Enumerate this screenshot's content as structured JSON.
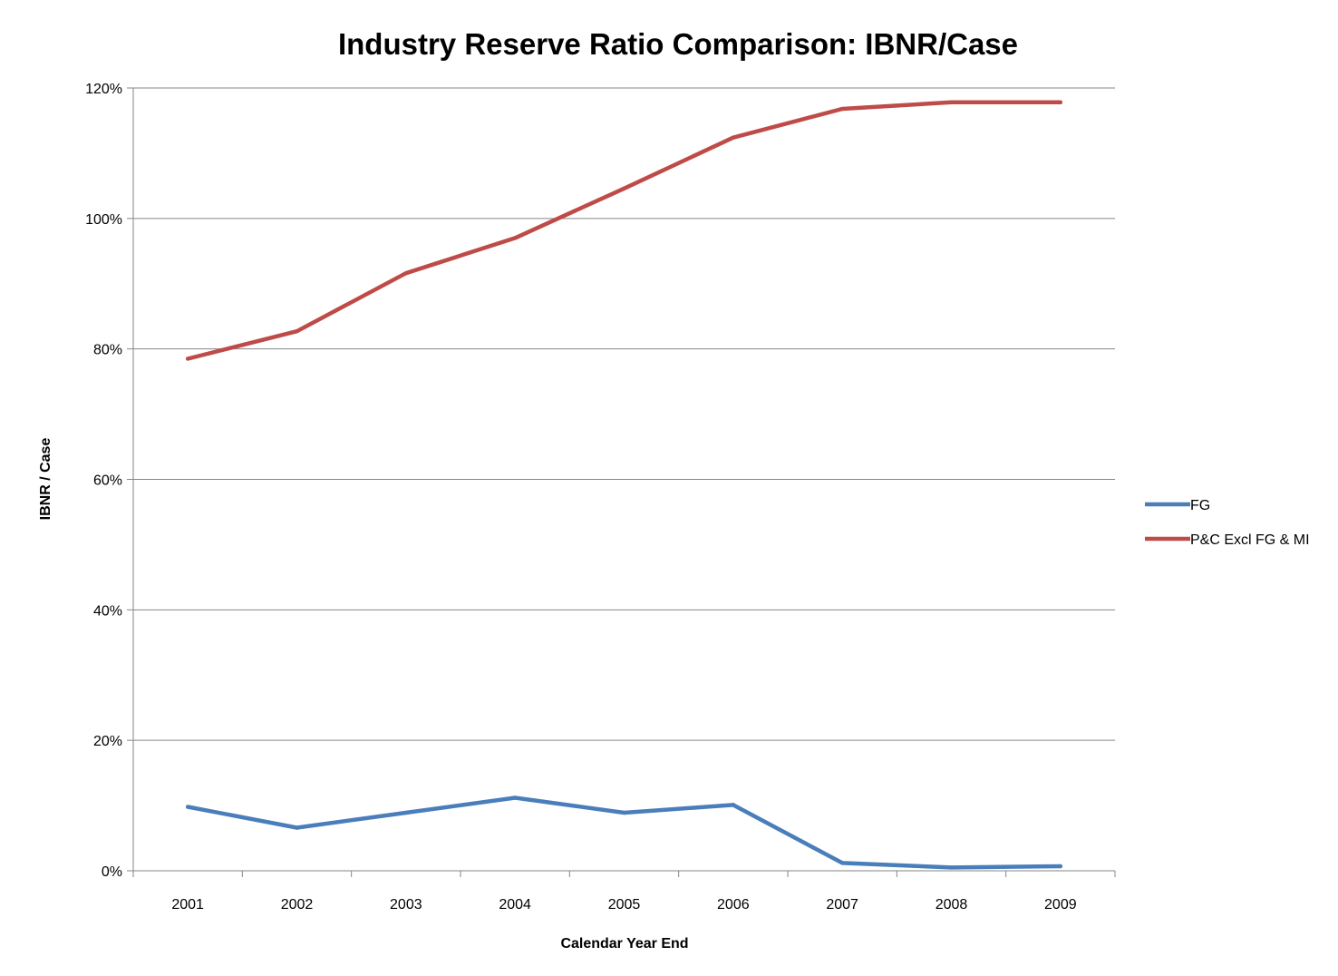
{
  "chart_data": {
    "type": "line",
    "title": "Industry Reserve Ratio Comparison: IBNR/Case",
    "xlabel": "Calendar Year End",
    "ylabel": "IBNR / Case",
    "categories": [
      "2001",
      "2002",
      "2003",
      "2004",
      "2005",
      "2006",
      "2007",
      "2008",
      "2009"
    ],
    "y_ticks": [
      "0%",
      "20%",
      "40%",
      "60%",
      "80%",
      "100%",
      "120%"
    ],
    "ylim": [
      0,
      1.2
    ],
    "grid": "horizontal",
    "legend_position": "right",
    "series": [
      {
        "name": "FG",
        "color": "#4a7ebb",
        "values": [
          0.098,
          0.066,
          0.089,
          0.112,
          0.089,
          0.101,
          0.012,
          0.005,
          0.007
        ]
      },
      {
        "name": "P&C Excl FG & MI",
        "color": "#be4b48",
        "values": [
          0.785,
          0.827,
          0.916,
          0.97,
          1.046,
          1.124,
          1.168,
          1.178,
          1.178
        ]
      }
    ]
  }
}
